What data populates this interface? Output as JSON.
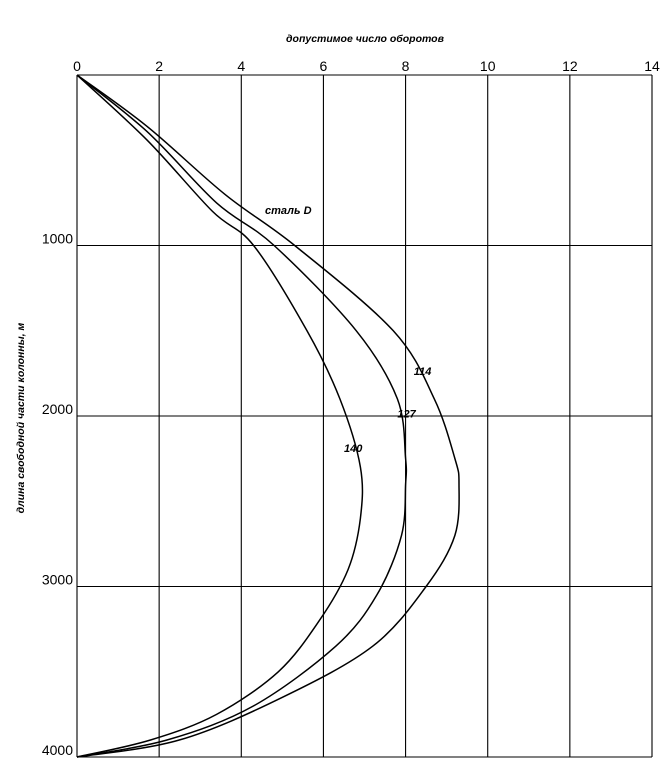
{
  "chart_data": {
    "type": "line",
    "title": "",
    "xlabel": "допустимое число оборотов",
    "ylabel": "длина свободной части колонны, м",
    "x_position": "top",
    "y_inverted": true,
    "xlim": [
      0,
      14
    ],
    "ylim": [
      0,
      4000
    ],
    "x_ticks": [
      "0",
      "2",
      "4",
      "6",
      "8",
      "10",
      "12",
      "14"
    ],
    "y_ticks": [
      "1000",
      "2000",
      "3000",
      "4000"
    ],
    "grid": true,
    "legend": "none",
    "annotation": "сталь D",
    "series": [
      {
        "name": "114",
        "points": [
          [
            0,
            0
          ],
          [
            1.7,
            300
          ],
          [
            3.6,
            700
          ],
          [
            5.3,
            1000
          ],
          [
            7.7,
            1500
          ],
          [
            8.7,
            1900
          ],
          [
            9.2,
            2250
          ],
          [
            9.3,
            2400
          ],
          [
            9.2,
            2700
          ],
          [
            8.5,
            3000
          ],
          [
            7.2,
            3350
          ],
          [
            5.0,
            3650
          ],
          [
            2.5,
            3900
          ],
          [
            0,
            4000
          ]
        ]
      },
      {
        "name": "127",
        "points": [
          [
            0,
            0
          ],
          [
            1.7,
            330
          ],
          [
            3.4,
            750
          ],
          [
            4.8,
            1000
          ],
          [
            6.8,
            1500
          ],
          [
            7.8,
            1900
          ],
          [
            8.0,
            2250
          ],
          [
            8.0,
            2400
          ],
          [
            7.9,
            2700
          ],
          [
            7.3,
            3050
          ],
          [
            6.3,
            3350
          ],
          [
            4.3,
            3700
          ],
          [
            2.2,
            3900
          ],
          [
            0,
            4000
          ]
        ]
      },
      {
        "name": "140",
        "points": [
          [
            0,
            0
          ],
          [
            1.7,
            380
          ],
          [
            3.3,
            800
          ],
          [
            4.3,
            1000
          ],
          [
            5.6,
            1500
          ],
          [
            6.4,
            1900
          ],
          [
            6.9,
            2300
          ],
          [
            6.9,
            2600
          ],
          [
            6.6,
            2900
          ],
          [
            5.9,
            3200
          ],
          [
            4.9,
            3500
          ],
          [
            3.4,
            3750
          ],
          [
            1.8,
            3900
          ],
          [
            0,
            4000
          ]
        ]
      }
    ]
  }
}
